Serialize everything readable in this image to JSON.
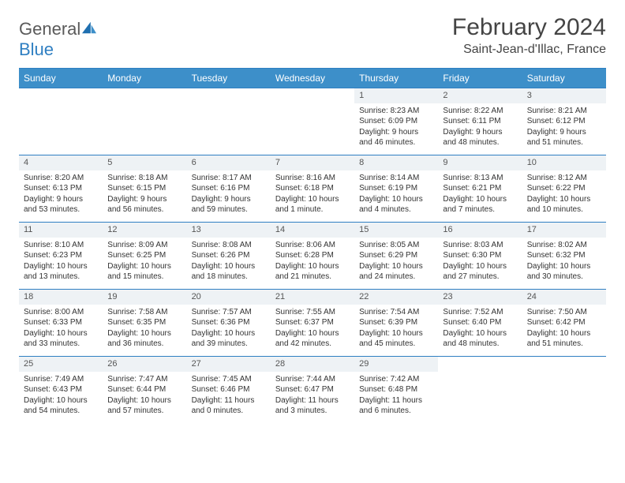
{
  "brand": {
    "name_part1": "General",
    "name_part2": "Blue"
  },
  "title": "February 2024",
  "location": "Saint-Jean-d'Illac, France",
  "colors": {
    "header_bg": "#3d8fc9",
    "border": "#2f7fc2",
    "daynum_bg": "#eef2f5",
    "text": "#333333",
    "title_text": "#444444"
  },
  "weekdays": [
    "Sunday",
    "Monday",
    "Tuesday",
    "Wednesday",
    "Thursday",
    "Friday",
    "Saturday"
  ],
  "weeks": [
    [
      {
        "n": "",
        "sr": "",
        "ss": "",
        "dl": ""
      },
      {
        "n": "",
        "sr": "",
        "ss": "",
        "dl": ""
      },
      {
        "n": "",
        "sr": "",
        "ss": "",
        "dl": ""
      },
      {
        "n": "",
        "sr": "",
        "ss": "",
        "dl": ""
      },
      {
        "n": "1",
        "sr": "Sunrise: 8:23 AM",
        "ss": "Sunset: 6:09 PM",
        "dl": "Daylight: 9 hours and 46 minutes."
      },
      {
        "n": "2",
        "sr": "Sunrise: 8:22 AM",
        "ss": "Sunset: 6:11 PM",
        "dl": "Daylight: 9 hours and 48 minutes."
      },
      {
        "n": "3",
        "sr": "Sunrise: 8:21 AM",
        "ss": "Sunset: 6:12 PM",
        "dl": "Daylight: 9 hours and 51 minutes."
      }
    ],
    [
      {
        "n": "4",
        "sr": "Sunrise: 8:20 AM",
        "ss": "Sunset: 6:13 PM",
        "dl": "Daylight: 9 hours and 53 minutes."
      },
      {
        "n": "5",
        "sr": "Sunrise: 8:18 AM",
        "ss": "Sunset: 6:15 PM",
        "dl": "Daylight: 9 hours and 56 minutes."
      },
      {
        "n": "6",
        "sr": "Sunrise: 8:17 AM",
        "ss": "Sunset: 6:16 PM",
        "dl": "Daylight: 9 hours and 59 minutes."
      },
      {
        "n": "7",
        "sr": "Sunrise: 8:16 AM",
        "ss": "Sunset: 6:18 PM",
        "dl": "Daylight: 10 hours and 1 minute."
      },
      {
        "n": "8",
        "sr": "Sunrise: 8:14 AM",
        "ss": "Sunset: 6:19 PM",
        "dl": "Daylight: 10 hours and 4 minutes."
      },
      {
        "n": "9",
        "sr": "Sunrise: 8:13 AM",
        "ss": "Sunset: 6:21 PM",
        "dl": "Daylight: 10 hours and 7 minutes."
      },
      {
        "n": "10",
        "sr": "Sunrise: 8:12 AM",
        "ss": "Sunset: 6:22 PM",
        "dl": "Daylight: 10 hours and 10 minutes."
      }
    ],
    [
      {
        "n": "11",
        "sr": "Sunrise: 8:10 AM",
        "ss": "Sunset: 6:23 PM",
        "dl": "Daylight: 10 hours and 13 minutes."
      },
      {
        "n": "12",
        "sr": "Sunrise: 8:09 AM",
        "ss": "Sunset: 6:25 PM",
        "dl": "Daylight: 10 hours and 15 minutes."
      },
      {
        "n": "13",
        "sr": "Sunrise: 8:08 AM",
        "ss": "Sunset: 6:26 PM",
        "dl": "Daylight: 10 hours and 18 minutes."
      },
      {
        "n": "14",
        "sr": "Sunrise: 8:06 AM",
        "ss": "Sunset: 6:28 PM",
        "dl": "Daylight: 10 hours and 21 minutes."
      },
      {
        "n": "15",
        "sr": "Sunrise: 8:05 AM",
        "ss": "Sunset: 6:29 PM",
        "dl": "Daylight: 10 hours and 24 minutes."
      },
      {
        "n": "16",
        "sr": "Sunrise: 8:03 AM",
        "ss": "Sunset: 6:30 PM",
        "dl": "Daylight: 10 hours and 27 minutes."
      },
      {
        "n": "17",
        "sr": "Sunrise: 8:02 AM",
        "ss": "Sunset: 6:32 PM",
        "dl": "Daylight: 10 hours and 30 minutes."
      }
    ],
    [
      {
        "n": "18",
        "sr": "Sunrise: 8:00 AM",
        "ss": "Sunset: 6:33 PM",
        "dl": "Daylight: 10 hours and 33 minutes."
      },
      {
        "n": "19",
        "sr": "Sunrise: 7:58 AM",
        "ss": "Sunset: 6:35 PM",
        "dl": "Daylight: 10 hours and 36 minutes."
      },
      {
        "n": "20",
        "sr": "Sunrise: 7:57 AM",
        "ss": "Sunset: 6:36 PM",
        "dl": "Daylight: 10 hours and 39 minutes."
      },
      {
        "n": "21",
        "sr": "Sunrise: 7:55 AM",
        "ss": "Sunset: 6:37 PM",
        "dl": "Daylight: 10 hours and 42 minutes."
      },
      {
        "n": "22",
        "sr": "Sunrise: 7:54 AM",
        "ss": "Sunset: 6:39 PM",
        "dl": "Daylight: 10 hours and 45 minutes."
      },
      {
        "n": "23",
        "sr": "Sunrise: 7:52 AM",
        "ss": "Sunset: 6:40 PM",
        "dl": "Daylight: 10 hours and 48 minutes."
      },
      {
        "n": "24",
        "sr": "Sunrise: 7:50 AM",
        "ss": "Sunset: 6:42 PM",
        "dl": "Daylight: 10 hours and 51 minutes."
      }
    ],
    [
      {
        "n": "25",
        "sr": "Sunrise: 7:49 AM",
        "ss": "Sunset: 6:43 PM",
        "dl": "Daylight: 10 hours and 54 minutes."
      },
      {
        "n": "26",
        "sr": "Sunrise: 7:47 AM",
        "ss": "Sunset: 6:44 PM",
        "dl": "Daylight: 10 hours and 57 minutes."
      },
      {
        "n": "27",
        "sr": "Sunrise: 7:45 AM",
        "ss": "Sunset: 6:46 PM",
        "dl": "Daylight: 11 hours and 0 minutes."
      },
      {
        "n": "28",
        "sr": "Sunrise: 7:44 AM",
        "ss": "Sunset: 6:47 PM",
        "dl": "Daylight: 11 hours and 3 minutes."
      },
      {
        "n": "29",
        "sr": "Sunrise: 7:42 AM",
        "ss": "Sunset: 6:48 PM",
        "dl": "Daylight: 11 hours and 6 minutes."
      },
      {
        "n": "",
        "sr": "",
        "ss": "",
        "dl": ""
      },
      {
        "n": "",
        "sr": "",
        "ss": "",
        "dl": ""
      }
    ]
  ]
}
